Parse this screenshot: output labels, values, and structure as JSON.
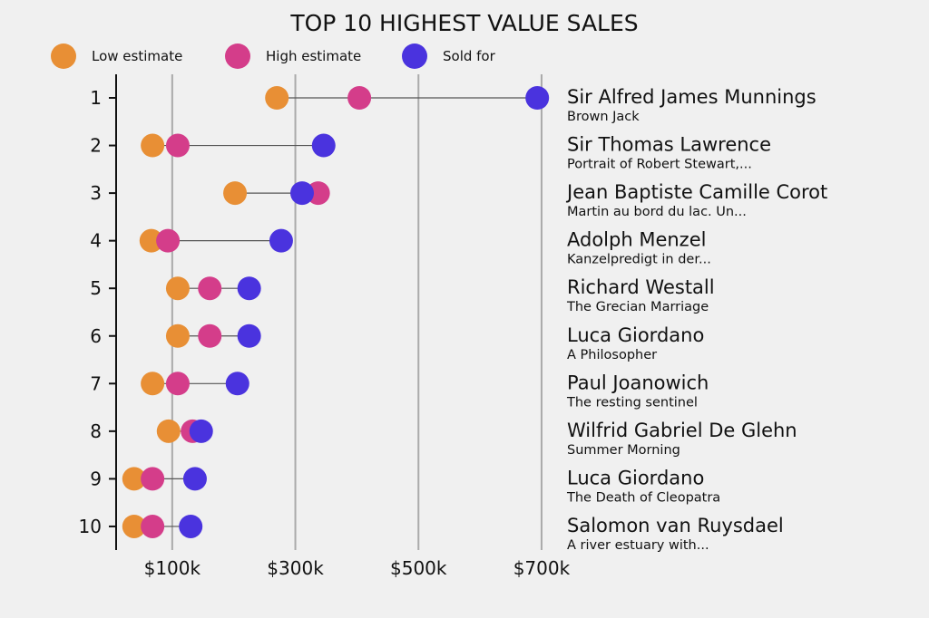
{
  "chart_data": {
    "type": "scatter",
    "subtype": "dumbbell",
    "title": "TOP 10 HIGHEST VALUE SALES",
    "xlabel": "",
    "ylabel": "",
    "xlim": [
      10000,
      720000
    ],
    "xticks": [
      100000,
      300000,
      500000,
      700000
    ],
    "xtick_labels": [
      "$100k",
      "$300k",
      "$500k",
      "$700k"
    ],
    "grid": "vertical",
    "legend_position": "top-left",
    "series": [
      {
        "name": "Low estimate",
        "color": "#e88f35"
      },
      {
        "name": "High estimate",
        "color": "#d43d8a"
      },
      {
        "name": "Sold for",
        "color": "#4a33de"
      }
    ],
    "rows": [
      {
        "rank": "1",
        "artist": "Sir Alfred James Munnings",
        "title": "Brown Jack",
        "low": 270000,
        "high": 404000,
        "sold": 693000
      },
      {
        "rank": "2",
        "artist": "Sir Thomas Lawrence",
        "title": "Portrait of Robert Stewart,...",
        "low": 68000,
        "high": 109000,
        "sold": 346000
      },
      {
        "rank": "3",
        "artist": "Jean Baptiste Camille Corot",
        "title": "Martin au bord du lac. Un...",
        "low": 202000,
        "high": 337000,
        "sold": 311000
      },
      {
        "rank": "4",
        "artist": "Adolph Menzel",
        "title": "Kanzelpredigt in der...",
        "low": 66000,
        "high": 93000,
        "sold": 277000
      },
      {
        "rank": "5",
        "artist": "Richard Westall",
        "title": "The Grecian Marriage",
        "low": 109000,
        "high": 161000,
        "sold": 225000
      },
      {
        "rank": "6",
        "artist": "Luca Giordano",
        "title": "A Philosopher",
        "low": 109000,
        "high": 161000,
        "sold": 225000
      },
      {
        "rank": "7",
        "artist": "Paul Joanowich",
        "title": "The resting sentinel",
        "low": 68000,
        "high": 109000,
        "sold": 206000
      },
      {
        "rank": "8",
        "artist": "Wilfrid Gabriel De Glehn",
        "title": "Summer Morning",
        "low": 94000,
        "high": 133000,
        "sold": 147000
      },
      {
        "rank": "9",
        "artist": "Luca Giordano",
        "title": "The Death of Cleopatra",
        "low": 38000,
        "high": 68000,
        "sold": 137000
      },
      {
        "rank": "10",
        "artist": "Salomon van Ruysdael",
        "title": "A river estuary with...",
        "low": 38000,
        "high": 68000,
        "sold": 130000
      }
    ]
  }
}
